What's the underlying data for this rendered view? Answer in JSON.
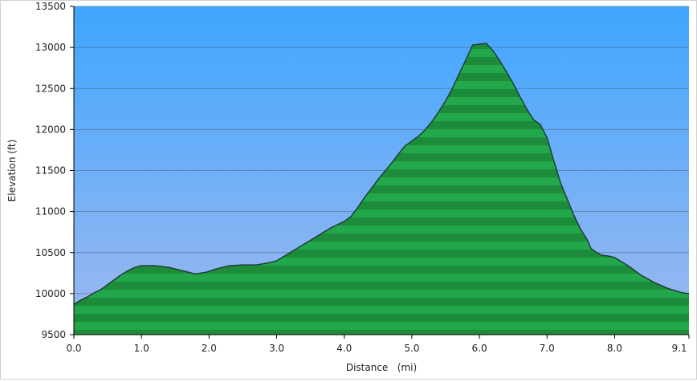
{
  "chart_data": {
    "type": "area",
    "xlabel": "Distance   (mi)",
    "ylabel": "Elevation (ft)",
    "xlim": [
      0,
      9.1
    ],
    "ylim": [
      9500,
      13500
    ],
    "x_ticks": [
      0,
      1,
      2,
      3,
      4,
      5,
      6,
      7,
      8,
      9.1
    ],
    "x_tick_labels": [
      "0.0",
      "1.0",
      "2.0",
      "3.0",
      "4.0",
      "5.0",
      "6.0",
      "7.0",
      "8.0",
      "9.1"
    ],
    "y_ticks": [
      9500,
      10000,
      10500,
      11000,
      11500,
      12000,
      12500,
      13000,
      13500
    ],
    "y_tick_labels": [
      "9500",
      "10000",
      "10500",
      "11000",
      "11500",
      "12000",
      "12500",
      "13000",
      "13500"
    ],
    "grid": true,
    "colors": {
      "sky_top": "#3fa6ff",
      "sky_bottom": "#9fb9ef",
      "fill_light": "#22a84a",
      "fill_dark": "#1d8c3a",
      "outline": "#1f3d3a",
      "gridline": "#4a5f7a"
    },
    "series": [
      {
        "x": [
          0.0,
          0.1,
          0.2,
          0.3,
          0.4,
          0.5,
          0.6,
          0.7,
          0.8,
          0.9,
          1.0,
          1.1,
          1.2,
          1.4,
          1.6,
          1.8,
          1.95,
          2.1,
          2.3,
          2.5,
          2.7,
          2.85,
          3.0,
          3.2,
          3.4,
          3.6,
          3.8,
          4.0,
          4.1,
          4.2,
          4.3,
          4.4,
          4.5,
          4.6,
          4.7,
          4.8,
          4.9,
          5.0,
          5.1,
          5.2,
          5.3,
          5.4,
          5.5,
          5.6,
          5.7,
          5.8,
          5.9,
          6.0,
          6.1,
          6.2,
          6.3,
          6.4,
          6.5,
          6.6,
          6.7,
          6.8,
          6.9,
          7.0,
          7.1,
          7.2,
          7.3,
          7.4,
          7.5,
          7.6,
          7.65,
          7.7,
          7.8,
          7.9,
          8.0,
          8.2,
          8.4,
          8.6,
          8.8,
          9.0,
          9.1
        ],
        "y": [
          9870,
          9920,
          9960,
          10010,
          10050,
          10110,
          10170,
          10230,
          10280,
          10320,
          10340,
          10340,
          10340,
          10320,
          10280,
          10240,
          10260,
          10300,
          10340,
          10350,
          10350,
          10370,
          10400,
          10500,
          10600,
          10700,
          10800,
          10880,
          10940,
          11050,
          11170,
          11280,
          11390,
          11490,
          11590,
          11700,
          11800,
          11860,
          11920,
          12000,
          12100,
          12220,
          12350,
          12500,
          12680,
          12850,
          13030,
          13040,
          13050,
          12960,
          12840,
          12700,
          12560,
          12400,
          12250,
          12120,
          12060,
          11900,
          11620,
          11350,
          11150,
          10950,
          10780,
          10650,
          10550,
          10520,
          10470,
          10460,
          10440,
          10340,
          10220,
          10130,
          10060,
          10010,
          10000
        ]
      }
    ]
  }
}
